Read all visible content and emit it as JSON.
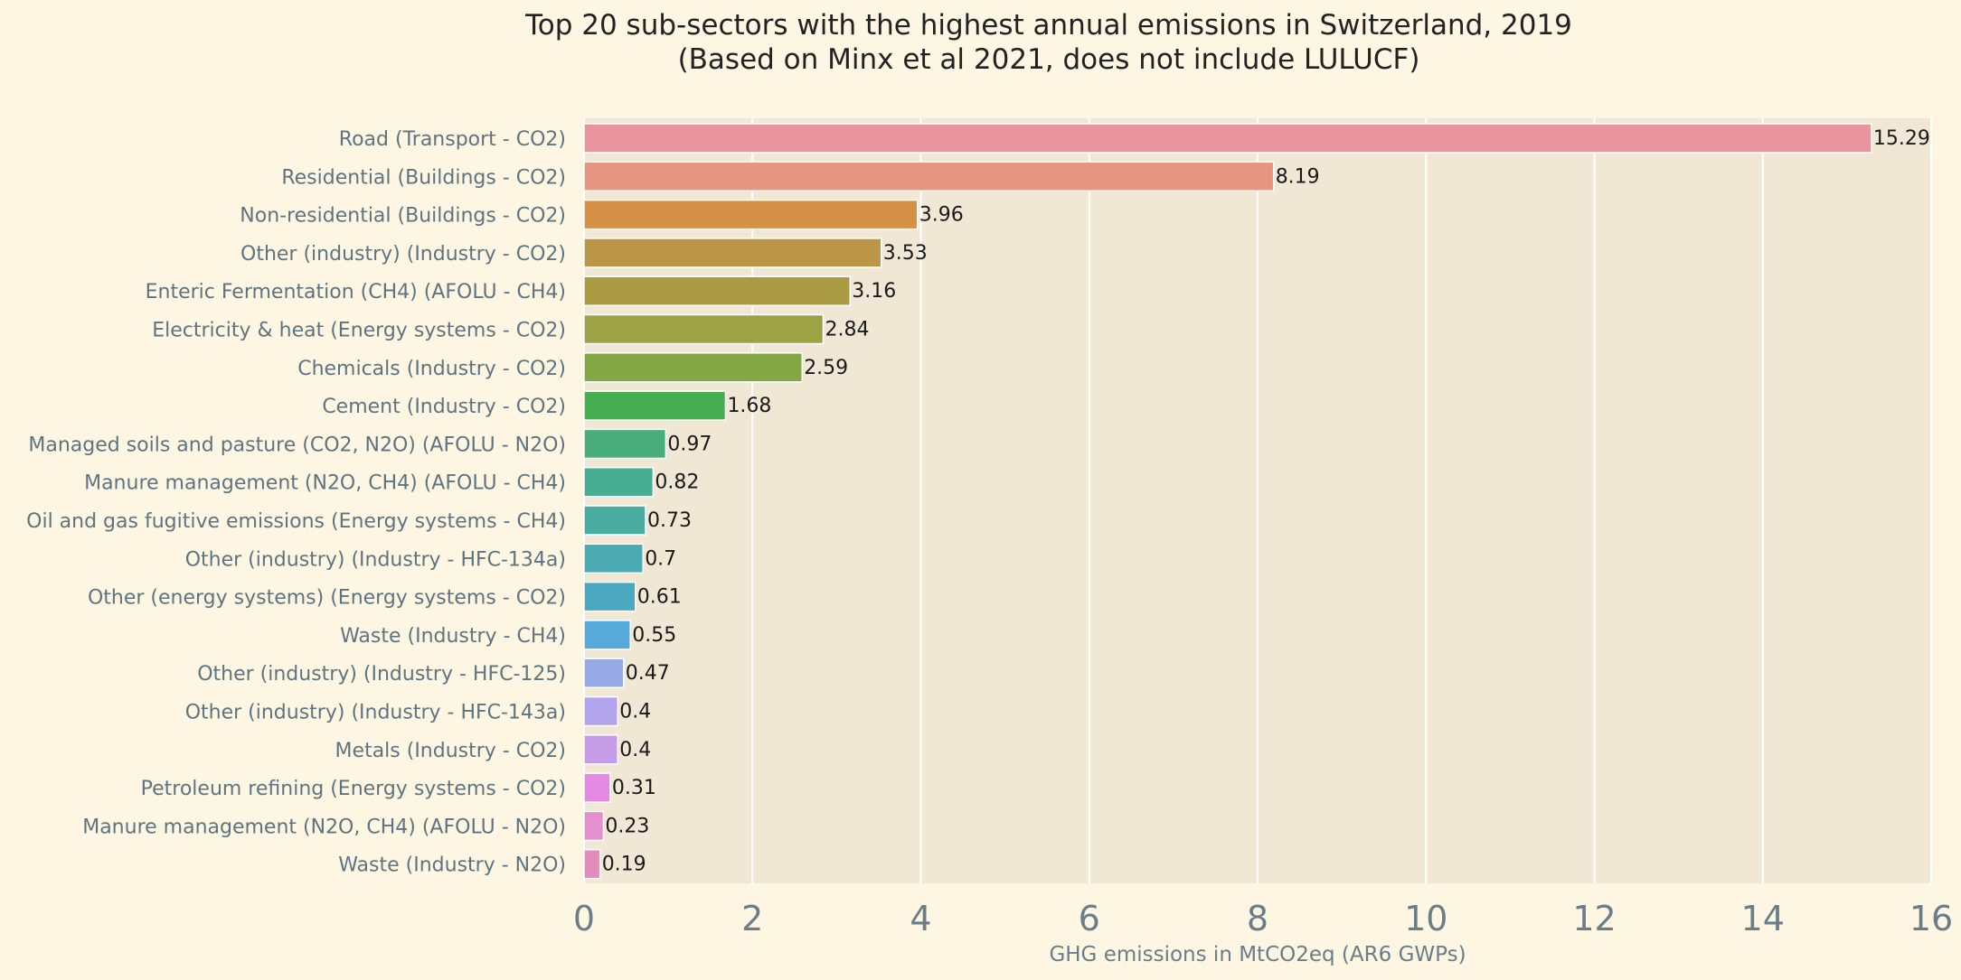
{
  "chart_data": {
    "type": "bar",
    "orientation": "horizontal",
    "title": "Top 20 sub-sectors with the highest annual emissions in Switzerland, 2019",
    "subtitle": "(Based on Minx et al 2021, does not include LULUCF)",
    "xlabel": "GHG emissions in MtCO2eq (AR6 GWPs)",
    "ylabel": "",
    "xlim": [
      0,
      16
    ],
    "xticks": [
      "0",
      "2",
      "4",
      "6",
      "8",
      "10",
      "12",
      "14",
      "16"
    ],
    "grid": "vertical",
    "categories": [
      "Road (Transport - CO2)",
      "Residential (Buildings - CO2)",
      "Non-residential (Buildings - CO2)",
      "Other (industry) (Industry - CO2)",
      "Enteric Fermentation (CH4) (AFOLU - CH4)",
      "Electricity & heat (Energy systems - CO2)",
      "Chemicals (Industry - CO2)",
      "Cement (Industry - CO2)",
      "Managed soils and pasture (CO2, N2O) (AFOLU - N2O)",
      "Manure management (N2O, CH4) (AFOLU - CH4)",
      "Oil and gas fugitive emissions (Energy systems - CH4)",
      "Other (industry) (Industry - HFC-134a)",
      "Other (energy systems) (Energy systems - CO2)",
      "Waste (Industry - CH4)",
      "Other (industry) (Industry - HFC-125)",
      "Other (industry) (Industry - HFC-143a)",
      "Metals (Industry - CO2)",
      "Petroleum refining (Energy systems - CO2)",
      "Manure management (N2O, CH4) (AFOLU - N2O)",
      "Waste (Industry - N2O)"
    ],
    "values": [
      15.29,
      8.19,
      3.96,
      3.53,
      3.16,
      2.84,
      2.59,
      1.68,
      0.97,
      0.82,
      0.73,
      0.7,
      0.61,
      0.55,
      0.47,
      0.4,
      0.4,
      0.31,
      0.23,
      0.19
    ],
    "value_labels": [
      "15.29",
      "8.19",
      "3.96",
      "3.53",
      "3.16",
      "2.84",
      "2.59",
      "1.68",
      "0.97",
      "0.82",
      "0.73",
      "0.7",
      "0.61",
      "0.55",
      "0.47",
      "0.4",
      "0.4",
      "0.31",
      "0.23",
      "0.19"
    ],
    "colors": [
      "#e8949e",
      "#e69581",
      "#d79146",
      "#ba9646",
      "#aa9a41",
      "#9da244",
      "#82a844",
      "#46ae50",
      "#48ad7b",
      "#48ae92",
      "#48aca1",
      "#4aabb3",
      "#4aa8c0",
      "#57abdb",
      "#95aae6",
      "#b2a4ec",
      "#c69ce8",
      "#e48ae5",
      "#e38fd0",
      "#e38cbc"
    ],
    "background": "#fdf6e3",
    "plot_background": "#f0e8d5"
  }
}
